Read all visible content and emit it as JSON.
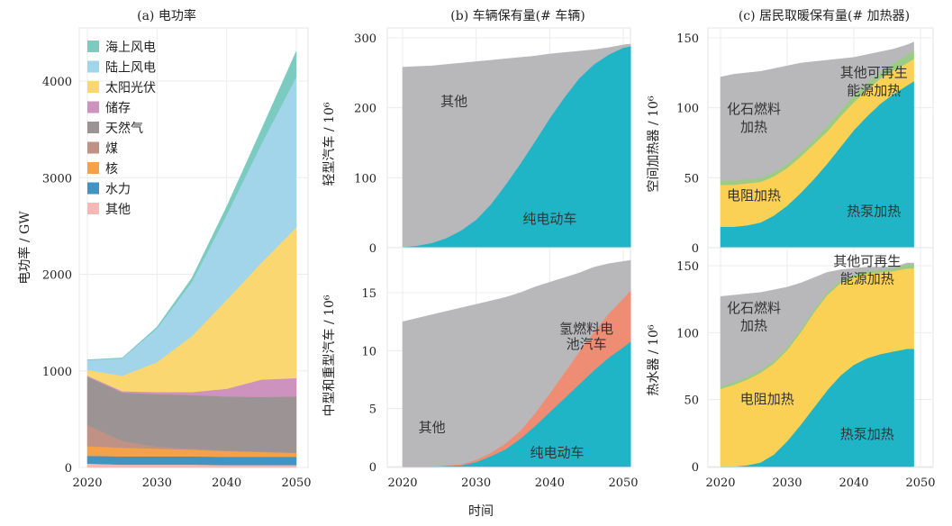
{
  "figure": {
    "shared_xlabel": "时间"
  },
  "chart_data": [
    {
      "id": "a",
      "type": "area",
      "stacked": true,
      "title": "(a)  电功率",
      "xlabel": "",
      "ylabel": "电功率 / GW",
      "xlim": [
        2020,
        2050
      ],
      "ylim": [
        0,
        4400
      ],
      "xticks": [
        2020,
        2030,
        2040,
        2050
      ],
      "yticks": [
        0,
        1000,
        2000,
        3000,
        4000
      ],
      "grid": true,
      "legend": "top-left",
      "x": [
        2020,
        2025,
        2030,
        2035,
        2040,
        2045,
        2050
      ],
      "series": [
        {
          "name": "其他",
          "color": "#f4b9b5",
          "values": [
            40,
            30,
            30,
            30,
            25,
            25,
            25
          ]
        },
        {
          "name": "水力",
          "color": "#4193c2",
          "values": [
            80,
            85,
            85,
            85,
            85,
            85,
            85
          ]
        },
        {
          "name": "核",
          "color": "#f3a24a",
          "values": [
            100,
            90,
            80,
            70,
            60,
            50,
            40
          ]
        },
        {
          "name": "煤",
          "color": "#c09285",
          "values": [
            220,
            70,
            20,
            10,
            5,
            5,
            5
          ]
        },
        {
          "name": "天然气",
          "color": "#9c9494",
          "values": [
            500,
            500,
            545,
            555,
            560,
            565,
            580
          ]
        },
        {
          "name": "储存",
          "color": "#cd92bd",
          "values": [
            10,
            15,
            20,
            30,
            80,
            180,
            190
          ]
        },
        {
          "name": "太阳光伏",
          "color": "#fbd772",
          "values": [
            60,
            160,
            310,
            580,
            920,
            1210,
            1560
          ]
        },
        {
          "name": "陆上风电",
          "color": "#a2d5ea",
          "values": [
            100,
            180,
            350,
            560,
            880,
            1230,
            1560
          ]
        },
        {
          "name": "海上风电",
          "color": "#7ccbc0",
          "values": [
            5,
            5,
            15,
            40,
            85,
            150,
            265
          ]
        }
      ]
    },
    {
      "id": "b-top",
      "type": "area",
      "stacked": true,
      "title": "(b)  车辆保有量(# 车辆)",
      "ylabel": "轻型汽车 / 10⁶",
      "xlim": [
        2018,
        2052
      ],
      "ylim": [
        0,
        300
      ],
      "yticks": [
        0,
        100,
        200,
        300
      ],
      "grid": true,
      "x": [
        2020,
        2022,
        2024,
        2026,
        2028,
        2030,
        2032,
        2034,
        2036,
        2038,
        2040,
        2042,
        2044,
        2046,
        2048,
        2050,
        2051
      ],
      "series": [
        {
          "name": "纯电动车",
          "color": "#1fb5c6",
          "values": [
            1,
            3,
            7,
            14,
            25,
            40,
            62,
            90,
            120,
            152,
            185,
            215,
            242,
            262,
            276,
            286,
            288
          ]
        },
        {
          "name": "其他",
          "color": "#b8b8bb",
          "values": [
            257,
            256,
            253,
            248,
            239,
            226,
            206,
            180,
            152,
            122,
            92,
            64,
            39,
            21,
            10,
            4,
            3
          ]
        }
      ],
      "annotations": [
        {
          "text": "其他",
          "x": 2027,
          "y": 203
        },
        {
          "text": "纯电动车",
          "x": 2040,
          "y": 35
        }
      ]
    },
    {
      "id": "b-bottom",
      "type": "area",
      "stacked": true,
      "ylabel": "中型和重型汽车 / 10⁶",
      "xlabel": "时间",
      "xlim": [
        2018,
        2052
      ],
      "ylim": [
        0,
        18
      ],
      "xticks": [
        2020,
        2030,
        2040,
        2050
      ],
      "yticks": [
        0,
        5,
        10,
        15
      ],
      "grid": true,
      "x": [
        2020,
        2024,
        2028,
        2030,
        2032,
        2034,
        2036,
        2038,
        2040,
        2042,
        2044,
        2046,
        2048,
        2050,
        2051
      ],
      "series": [
        {
          "name": "纯电动车",
          "color": "#1fb5c6",
          "values": [
            0,
            0,
            0.1,
            0.4,
            0.9,
            1.5,
            2.4,
            3.5,
            4.7,
            5.9,
            7.1,
            8.3,
            9.4,
            10.3,
            10.8
          ]
        },
        {
          "name": "氢燃料电池汽车",
          "color": "#ef8d74",
          "values": [
            0,
            0,
            0.1,
            0.2,
            0.3,
            0.5,
            0.7,
            1.1,
            1.6,
            2.2,
            2.8,
            3.3,
            3.8,
            4.2,
            4.4
          ]
        },
        {
          "name": "其他",
          "color": "#b8b8bb",
          "values": [
            12.5,
            13.1,
            13.5,
            13.4,
            13.1,
            12.6,
            11.9,
            10.9,
            9.6,
            8.2,
            6.8,
            5.6,
            4.3,
            3.2,
            2.6
          ]
        }
      ],
      "annotations": [
        {
          "text": "其他",
          "x": 2024,
          "y": 3
        },
        {
          "text": "纯电动车",
          "x": 2041,
          "y": 0.8
        },
        {
          "text": "氢燃料电",
          "x": 2045,
          "y": 11.5
        },
        {
          "text": "池汽车",
          "x": 2045,
          "y": 10.2
        }
      ]
    },
    {
      "id": "c-top",
      "type": "area",
      "stacked": true,
      "title": "(c)  居民取暖保有量(# 加热器)",
      "ylabel": "空间加热器 / 10⁶",
      "xlim": [
        2020,
        2050
      ],
      "ylim": [
        0,
        150
      ],
      "yticks": [
        0,
        50,
        100,
        150
      ],
      "grid": true,
      "x": [
        2020,
        2022,
        2024,
        2026,
        2028,
        2030,
        2032,
        2034,
        2036,
        2038,
        2040,
        2042,
        2044,
        2046,
        2048,
        2049
      ],
      "series": [
        {
          "name": "热泵加热",
          "color": "#1fb5c6",
          "values": [
            15,
            15,
            16,
            18,
            23,
            30,
            39,
            49,
            60,
            72,
            84,
            94,
            103,
            110,
            116,
            119
          ]
        },
        {
          "name": "电阻加热",
          "color": "#fad155",
          "values": [
            30,
            30,
            30,
            29,
            28,
            27,
            26,
            25,
            23,
            22,
            20,
            19,
            18,
            17,
            16,
            16
          ]
        },
        {
          "name": "其他可再生能源加热",
          "color": "#9ccb86",
          "values": [
            3,
            3,
            3,
            3,
            3,
            3,
            3,
            3,
            4,
            4,
            5,
            5,
            5,
            5,
            6,
            6
          ]
        },
        {
          "name": "化石燃料加热",
          "color": "#b8b8bb",
          "values": [
            74,
            76,
            76,
            76,
            74,
            70,
            64,
            56,
            47,
            37,
            27,
            20,
            14,
            10,
            7,
            6
          ]
        }
      ],
      "annotations": [
        {
          "text": "化石燃料",
          "x": 2025,
          "y": 96
        },
        {
          "text": "加热",
          "x": 2025,
          "y": 83
        },
        {
          "text": "其他可再生",
          "x": 2043,
          "y": 122
        },
        {
          "text": "能源加热",
          "x": 2043,
          "y": 109
        },
        {
          "text": "电阻加热",
          "x": 2025,
          "y": 34
        },
        {
          "text": "热泵加热",
          "x": 2043,
          "y": 23
        }
      ]
    },
    {
      "id": "c-bottom",
      "type": "area",
      "stacked": true,
      "ylabel": "热水器 / 10⁶",
      "xlim": [
        2020,
        2050
      ],
      "ylim": [
        0,
        155
      ],
      "xticks": [
        2020,
        2030,
        2040,
        2050
      ],
      "yticks": [
        0,
        50,
        100,
        150
      ],
      "grid": true,
      "x": [
        2020,
        2022,
        2024,
        2026,
        2028,
        2030,
        2032,
        2034,
        2036,
        2038,
        2040,
        2042,
        2044,
        2046,
        2048,
        2049
      ],
      "series": [
        {
          "name": "热泵加热",
          "color": "#1fb5c6",
          "values": [
            0,
            0,
            1,
            3,
            9,
            19,
            31,
            44,
            57,
            68,
            76,
            81,
            84,
            86,
            88,
            88
          ]
        },
        {
          "name": "电阻加热",
          "color": "#fad155",
          "values": [
            58,
            61,
            64,
            67,
            68,
            68,
            69,
            71,
            71,
            69,
            65,
            63,
            61,
            60,
            60,
            60
          ]
        },
        {
          "name": "其他可再生能源加热",
          "color": "#9ccb86",
          "values": [
            2,
            2,
            2,
            2,
            2,
            2,
            2,
            2,
            2,
            2,
            2,
            2,
            2,
            2,
            3,
            3
          ]
        },
        {
          "name": "化石燃料加热",
          "color": "#b8b8bb",
          "values": [
            67,
            65,
            62,
            58,
            53,
            45,
            35,
            24,
            15,
            8,
            5,
            3,
            2,
            1,
            1,
            1
          ]
        }
      ],
      "annotations": [
        {
          "text": "化石燃料",
          "x": 2025,
          "y": 115
        },
        {
          "text": "加热",
          "x": 2025,
          "y": 102
        },
        {
          "text": "其他可再生",
          "x": 2042,
          "y": 150
        },
        {
          "text": "能源加热",
          "x": 2042,
          "y": 137
        },
        {
          "text": "电阻加热",
          "x": 2027,
          "y": 47
        },
        {
          "text": "热泵加热",
          "x": 2042,
          "y": 21
        }
      ]
    }
  ]
}
